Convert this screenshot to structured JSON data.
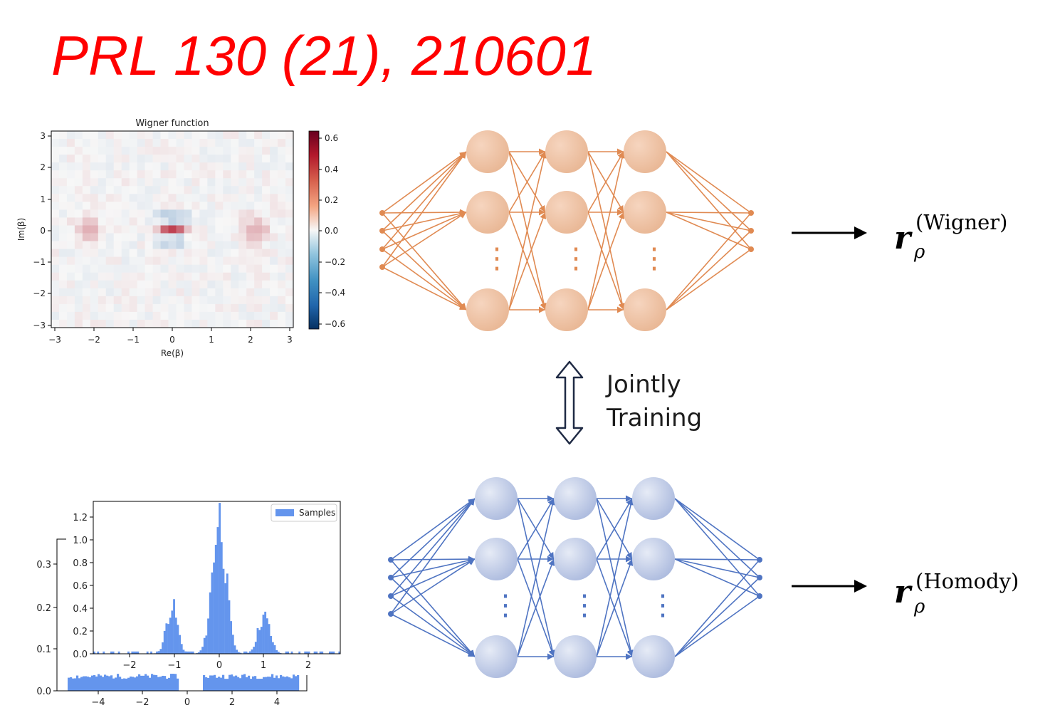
{
  "reference": "PRL 130 (21), 210601",
  "wigner_plot": {
    "title": "Wigner function",
    "xlabel": "Re(β)",
    "ylabel": "Im(β)",
    "x_ticks": [
      "−3",
      "−2",
      "−1",
      "0",
      "1",
      "2",
      "3"
    ],
    "y_ticks": [
      "3",
      "2",
      "1",
      "0",
      "−1",
      "−2",
      "−3"
    ],
    "colorbar_ticks": [
      "0.6",
      "0.4",
      "0.2",
      "0.0",
      "−0.2",
      "−0.4",
      "−0.6"
    ],
    "colormap": "RdBu_r"
  },
  "homodyne_plot": {
    "legend_label": "Samples",
    "bar_color": "#6495ed",
    "x_ticks": [
      "−2",
      "−1",
      "0",
      "1",
      "2"
    ],
    "y_ticks": [
      "0.0",
      "0.2",
      "0.4",
      "0.6",
      "0.8",
      "1.0",
      "1.2"
    ],
    "back_x_ticks": [
      "−4",
      "−2",
      "0",
      "2",
      "4"
    ],
    "back_y_ticks": [
      "0.0",
      "0.1",
      "0.2",
      "0.3"
    ]
  },
  "networks": {
    "top_color": "#e08a52",
    "bottom_color": "#4f74c2",
    "ellipsis": "⋮"
  },
  "joint_label": {
    "line1": "Jointly",
    "line2": "Training"
  },
  "outputs": {
    "top": {
      "symbol": "r",
      "subscript": "ρ",
      "superscript": "(Wigner)"
    },
    "bottom": {
      "symbol": "r",
      "subscript": "ρ",
      "superscript": "(Homody)"
    }
  }
}
